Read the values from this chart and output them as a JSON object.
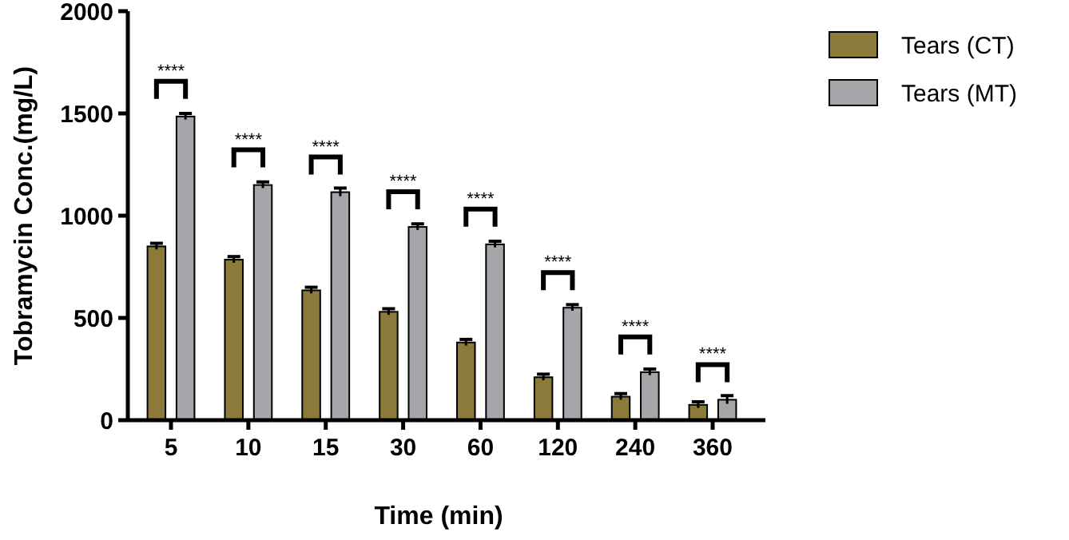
{
  "chart_data": {
    "type": "bar",
    "xlabel": "Time (min)",
    "ylabel": "Tobramycin Conc.(mg/L)",
    "categories": [
      "5",
      "10",
      "15",
      "30",
      "60",
      "120",
      "240",
      "360"
    ],
    "series": [
      {
        "name": "Tears (CT)",
        "color": "#8b7a3a",
        "values": [
          850,
          785,
          635,
          530,
          380,
          210,
          115,
          75
        ],
        "errors": [
          15,
          15,
          15,
          15,
          15,
          15,
          15,
          15
        ]
      },
      {
        "name": "Tears (MT)",
        "color": "#a5a5aa",
        "values": [
          1485,
          1150,
          1115,
          945,
          860,
          550,
          235,
          100
        ],
        "errors": [
          15,
          15,
          20,
          15,
          15,
          15,
          15,
          20
        ]
      }
    ],
    "ylim": [
      0,
      2000
    ],
    "yticks": [
      0,
      500,
      1000,
      1500,
      2000
    ],
    "legend": "right",
    "grid": false,
    "annotations": [
      "****",
      "****",
      "****",
      "****",
      "****",
      "****",
      "****",
      "****"
    ]
  }
}
